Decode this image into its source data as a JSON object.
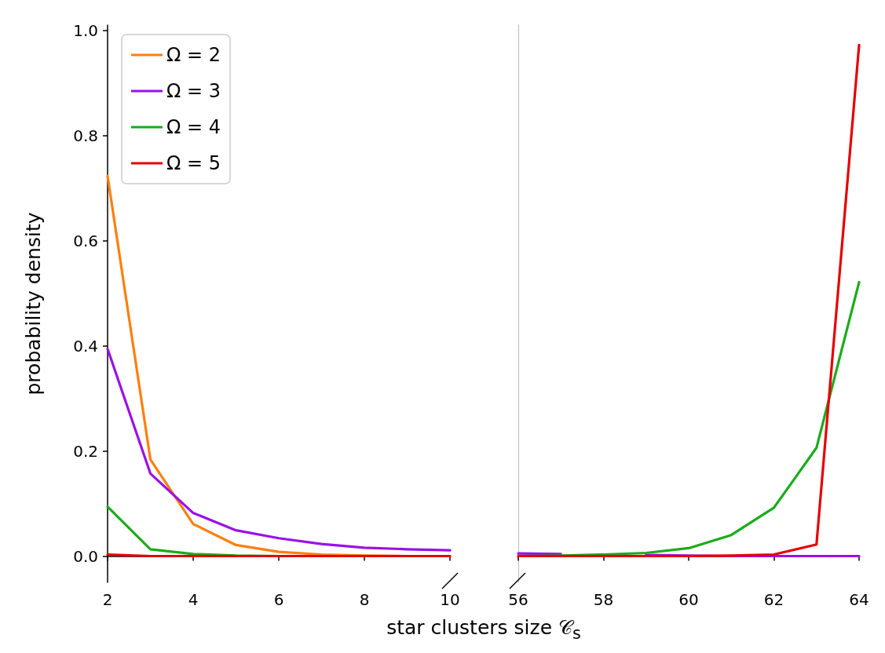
{
  "chart_data": [
    {
      "type": "line",
      "ylabel": "probability density",
      "xlabel": "star clusters size 𝒞$_{s}$",
      "x": [
        2,
        3,
        4,
        5,
        6,
        7,
        8,
        9,
        10
      ],
      "xlim": [
        2,
        10
      ],
      "xticks": [
        2,
        4,
        6,
        8,
        10
      ],
      "ylim": [
        -0.05,
        1.01
      ],
      "yticks": [
        {
          "value": 0,
          "label": "0.0"
        },
        {
          "value": 0.2,
          "label": "0.2"
        },
        {
          "value": 0.4,
          "label": "0.4"
        },
        {
          "value": 0.6,
          "label": "0.6"
        },
        {
          "value": 0.8,
          "label": "0.8"
        },
        {
          "value": 1,
          "label": "1.0"
        }
      ],
      "legend": "top left",
      "grid": false,
      "series": [
        {
          "name": "Ω = 2",
          "color": "#ff7f0e",
          "values": [
            0.723,
            0.184,
            0.061,
            0.021,
            0.008,
            0.003,
            0.001,
            0,
            0
          ]
        },
        {
          "name": "Ω = 3",
          "color": "#9b10e8",
          "values": [
            0.394,
            0.157,
            0.082,
            0.049,
            0.034,
            0.023,
            0.016,
            0.013,
            0.011
          ]
        },
        {
          "name": "Ω = 4",
          "color": "#1aac1a",
          "values": [
            0.094,
            0.013,
            0.004,
            0.001,
            0,
            0,
            null,
            null,
            null
          ]
        },
        {
          "name": "Ω = 5",
          "color": "#e60000",
          "values": [
            0.003,
            0,
            0,
            0,
            0,
            0,
            0,
            0,
            0
          ]
        }
      ]
    },
    {
      "type": "line",
      "x": [
        56,
        57,
        58,
        59,
        60,
        61,
        62,
        63,
        64
      ],
      "xlim": [
        56,
        64
      ],
      "xticks": [
        56,
        58,
        60,
        62,
        64
      ],
      "ylim": [
        -0.05,
        1.01
      ],
      "tick_labels": "x",
      "grid": false,
      "series": [
        {
          "color": "#9b10e8",
          "values": [
            0.005,
            0.004,
            null,
            0.002,
            0.001,
            0,
            0,
            0,
            0
          ]
        },
        {
          "color": "#1aac1a",
          "values": [
            0,
            0.001,
            0.003,
            0.006,
            0.015,
            0.04,
            0.092,
            0.206,
            0.521
          ]
        },
        {
          "color": "#e60000",
          "values": [
            0,
            0,
            0,
            0,
            0,
            0.001,
            0.003,
            0.022,
            0.972
          ]
        }
      ]
    }
  ]
}
